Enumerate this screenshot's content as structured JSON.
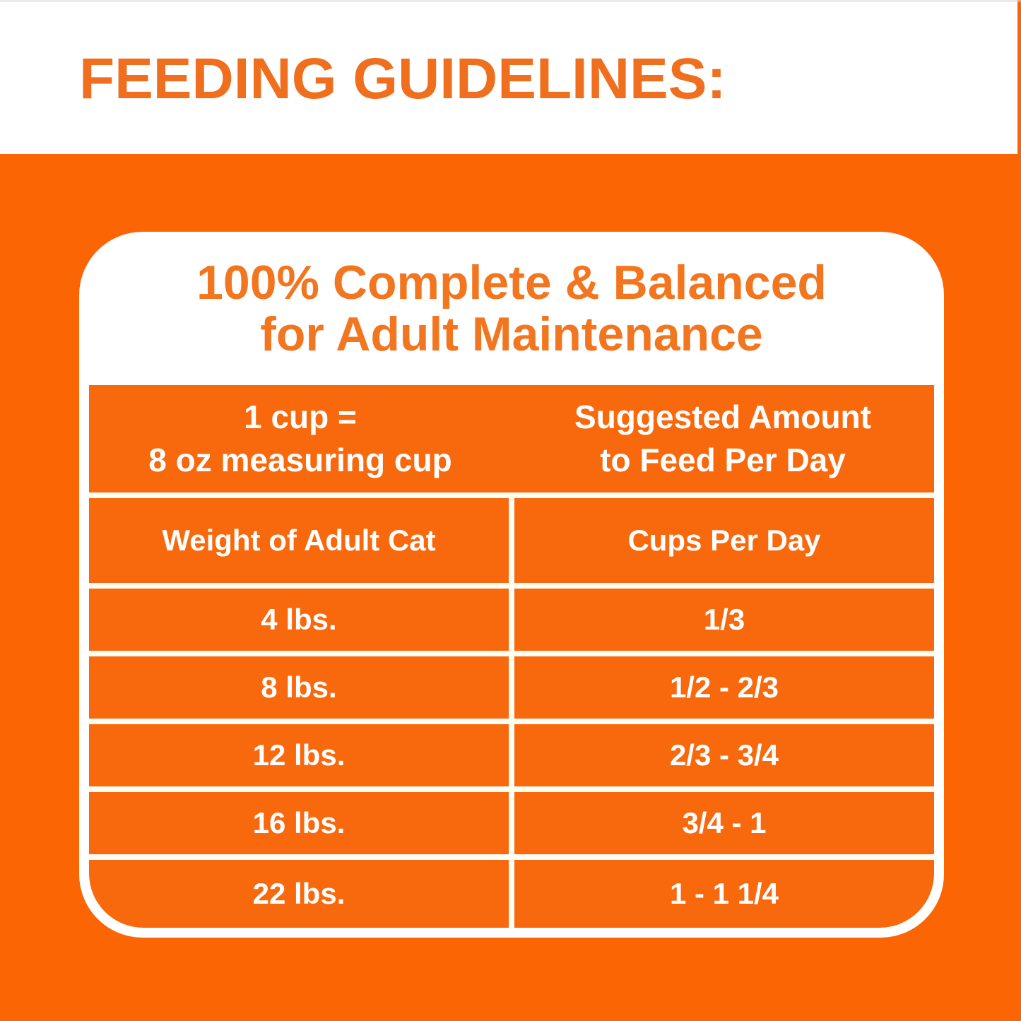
{
  "page": {
    "heading": "FEEDING GUIDELINES:",
    "colors": {
      "background_orange": "#FB6504",
      "cell_orange": "#F8680C",
      "heading_orange": "#EF6F1E",
      "title_orange": "#F2761F",
      "table_text_white": "#FFFFFF"
    }
  },
  "card": {
    "title_line1": "100% Complete & Balanced",
    "title_line2": "for Adult Maintenance",
    "table": {
      "measuring_header": {
        "left_line1": "1 cup =",
        "left_line2": "8 oz measuring cup",
        "right_line1": "Suggested Amount",
        "right_line2": "to Feed Per Day"
      },
      "column_headers": {
        "weight": "Weight of Adult Cat",
        "cups": "Cups Per Day"
      },
      "rows": [
        {
          "weight": "4 lbs.",
          "cups": "1/3"
        },
        {
          "weight": "8 lbs.",
          "cups": "1/2 - 2/3"
        },
        {
          "weight": "12 lbs.",
          "cups": "2/3 - 3/4"
        },
        {
          "weight": "16 lbs.",
          "cups": "3/4 - 1"
        },
        {
          "weight": "22 lbs.",
          "cups": "1 - 1 1/4"
        }
      ]
    }
  },
  "chart_data": {
    "type": "table",
    "title": "Feeding Guidelines: 100% Complete & Balanced for Adult Maintenance",
    "note_left": "1 cup = 8 oz measuring cup",
    "note_right": "Suggested Amount to Feed Per Day",
    "columns": [
      "Weight of Adult Cat",
      "Cups Per Day"
    ],
    "rows": [
      [
        "4 lbs.",
        "1/3"
      ],
      [
        "8 lbs.",
        "1/2 - 2/3"
      ],
      [
        "12 lbs.",
        "2/3 - 3/4"
      ],
      [
        "16 lbs.",
        "3/4 - 1"
      ],
      [
        "22 lbs.",
        "1 - 1 1/4"
      ]
    ]
  }
}
